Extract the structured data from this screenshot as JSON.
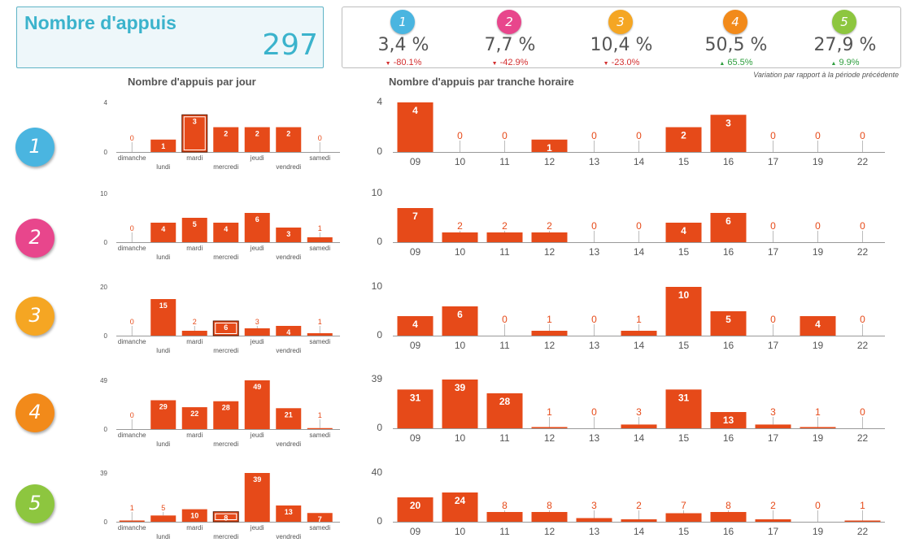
{
  "kpi": {
    "title": "Nombre d'appuis",
    "value": "297",
    "accent": "#3bb3cc"
  },
  "distribution": [
    {
      "label": "1",
      "color": "#4ab5e0",
      "pct": "3,4 %",
      "arrow": "▼",
      "variation": "-80.1%",
      "trend": "down"
    },
    {
      "label": "2",
      "color": "#e8468c",
      "pct": "7,7 %",
      "arrow": "▼",
      "variation": "-42.9%",
      "trend": "down"
    },
    {
      "label": "3",
      "color": "#f5a623",
      "pct": "10,4 %",
      "arrow": "▼",
      "variation": "-23.0%",
      "trend": "down"
    },
    {
      "label": "4",
      "color": "#f28a1a",
      "pct": "50,5 %",
      "arrow": "▲",
      "variation": "65.5%",
      "trend": "up"
    },
    {
      "label": "5",
      "color": "#8dc63f",
      "pct": "27,9 %",
      "arrow": "▲",
      "variation": "9.9%",
      "trend": "up"
    }
  ],
  "variation_note": "Variation par rapport à la période précédente",
  "section_titles": {
    "by_day": "Nombre d'appuis par jour",
    "by_hour": "Nombre d'appuis par tranche horaire"
  },
  "colors": {
    "bar": "#e64a19",
    "value_label_small": "#e64a19",
    "down": "#d32f2f",
    "up": "#2e9e3e"
  },
  "chart_data": [
    {
      "id": "day-1",
      "type": "bar",
      "row": "1",
      "title": "Nombre d'appuis par jour",
      "categories": [
        "dimanche",
        "lundi",
        "mardi",
        "mercredi",
        "jeudi",
        "vendredi",
        "samedi"
      ],
      "values": [
        0,
        1,
        3,
        2,
        2,
        2,
        0
      ],
      "ylim": [
        0,
        4
      ],
      "highlight": [
        2
      ]
    },
    {
      "id": "day-2",
      "type": "bar",
      "row": "2",
      "categories": [
        "dimanche",
        "lundi",
        "mardi",
        "mercredi",
        "jeudi",
        "vendredi",
        "samedi"
      ],
      "values": [
        0,
        4,
        5,
        4,
        6,
        3,
        1
      ],
      "ylim": [
        0,
        10
      ],
      "highlight": []
    },
    {
      "id": "day-3",
      "type": "bar",
      "row": "3",
      "categories": [
        "dimanche",
        "lundi",
        "mardi",
        "mercredi",
        "jeudi",
        "vendredi",
        "samedi"
      ],
      "values": [
        0,
        15,
        2,
        6,
        3,
        4,
        1
      ],
      "ylim": [
        0,
        20
      ],
      "highlight": [
        3
      ]
    },
    {
      "id": "day-4",
      "type": "bar",
      "row": "4",
      "categories": [
        "dimanche",
        "lundi",
        "mardi",
        "mercredi",
        "jeudi",
        "vendredi",
        "samedi"
      ],
      "values": [
        0,
        29,
        22,
        28,
        49,
        21,
        1
      ],
      "ylim": [
        0,
        49
      ],
      "highlight": []
    },
    {
      "id": "day-5",
      "type": "bar",
      "row": "5",
      "categories": [
        "dimanche",
        "lundi",
        "mardi",
        "mercredi",
        "jeudi",
        "vendredi",
        "samedi"
      ],
      "values": [
        1,
        5,
        10,
        8,
        39,
        13,
        7
      ],
      "ylim": [
        0,
        39
      ],
      "highlight": [
        3
      ]
    },
    {
      "id": "hour-1",
      "type": "bar",
      "row": "1",
      "title": "Nombre d'appuis par tranche horaire",
      "categories": [
        "09",
        "10",
        "11",
        "12",
        "13",
        "14",
        "15",
        "16",
        "17",
        "19",
        "22"
      ],
      "values": [
        4,
        0,
        0,
        1,
        0,
        0,
        2,
        3,
        0,
        0,
        0
      ],
      "ylim": [
        0,
        4
      ]
    },
    {
      "id": "hour-2",
      "type": "bar",
      "row": "2",
      "categories": [
        "09",
        "10",
        "11",
        "12",
        "13",
        "14",
        "15",
        "16",
        "17",
        "19",
        "22"
      ],
      "values": [
        7,
        2,
        2,
        2,
        0,
        0,
        4,
        6,
        0,
        0,
        0
      ],
      "ylim": [
        0,
        10
      ]
    },
    {
      "id": "hour-3",
      "type": "bar",
      "row": "3",
      "categories": [
        "09",
        "10",
        "11",
        "12",
        "13",
        "14",
        "15",
        "16",
        "17",
        "19",
        "22"
      ],
      "values": [
        4,
        6,
        0,
        1,
        0,
        1,
        10,
        5,
        0,
        4,
        0
      ],
      "ylim": [
        0,
        10
      ]
    },
    {
      "id": "hour-4",
      "type": "bar",
      "row": "4",
      "categories": [
        "09",
        "10",
        "11",
        "12",
        "13",
        "14",
        "15",
        "16",
        "17",
        "19",
        "22"
      ],
      "values": [
        31,
        39,
        28,
        1,
        0,
        3,
        31,
        13,
        3,
        1,
        0
      ],
      "ylim": [
        0,
        39
      ]
    },
    {
      "id": "hour-5",
      "type": "bar",
      "row": "5",
      "categories": [
        "09",
        "10",
        "11",
        "12",
        "13",
        "14",
        "15",
        "16",
        "17",
        "19",
        "22"
      ],
      "values": [
        20,
        24,
        8,
        8,
        3,
        2,
        7,
        8,
        2,
        0,
        1
      ],
      "ylim": [
        0,
        40
      ]
    }
  ]
}
